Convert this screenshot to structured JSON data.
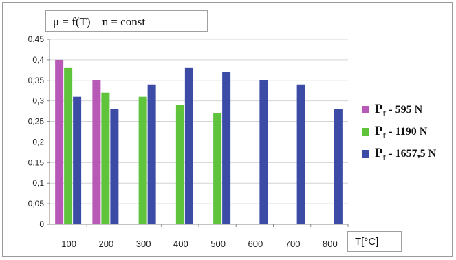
{
  "chart_data": {
    "type": "bar",
    "title": "μ = f(T)    n = const",
    "xlabel": "T[°C]",
    "ylabel": "",
    "ylim": [
      0,
      0.45
    ],
    "y_ticks": [
      "0",
      "0,05",
      "0,1",
      "0,15",
      "0,2",
      "0,25",
      "0,3",
      "0,35",
      "0,4",
      "0,45"
    ],
    "y_tick_values": [
      0,
      0.05,
      0.1,
      0.15,
      0.2,
      0.25,
      0.3,
      0.35,
      0.4,
      0.45
    ],
    "categories": [
      "100",
      "200",
      "300",
      "400",
      "500",
      "600",
      "700",
      "800"
    ],
    "grid": true,
    "legend_position": "right",
    "series": [
      {
        "name": "Pt - 595 N",
        "label_main": "P",
        "label_sub": "t",
        "label_rest": " - 595 N",
        "color": "#b75ab7",
        "values": [
          0.4,
          0.35,
          null,
          null,
          null,
          null,
          null,
          null
        ]
      },
      {
        "name": "Pt - 1190 N",
        "label_main": "P",
        "label_sub": "t",
        "label_rest": " - 1190 N",
        "color": "#5fc43c",
        "values": [
          0.38,
          0.32,
          0.31,
          0.29,
          0.27,
          null,
          null,
          null
        ]
      },
      {
        "name": "Pt - 1657,5 N",
        "label_main": "P",
        "label_sub": "t",
        "label_rest": " - 1657,5 N",
        "color": "#3b4ba6",
        "values": [
          0.31,
          0.28,
          0.34,
          0.38,
          0.37,
          0.35,
          0.34,
          0.28
        ]
      }
    ]
  }
}
